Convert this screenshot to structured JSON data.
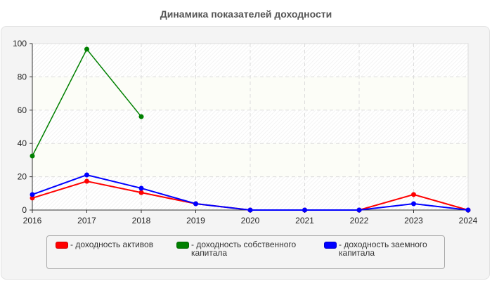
{
  "title": "Динамика показателей доходности",
  "colors": {
    "assets": "#ff0000",
    "equity": "#008000",
    "debt": "#0000ff",
    "panel_bg": "#f4f4f4",
    "grid": "#dddddd"
  },
  "legend": {
    "items": [
      {
        "label": "- доходность активов",
        "color": "#ff0000"
      },
      {
        "label": "- доходность собственного капитала",
        "color": "#008000"
      },
      {
        "label": "- доходность заемного капитала",
        "color": "#0000ff"
      }
    ]
  },
  "chart_data": {
    "type": "line",
    "title": "Динамика показателей доходности",
    "xlabel": "",
    "ylabel": "",
    "x": [
      "2016",
      "2017",
      "2018",
      "2019",
      "2020",
      "2021",
      "2022",
      "2023",
      "2024"
    ],
    "ylim": [
      0,
      100
    ],
    "yticks": [
      0,
      20,
      40,
      60,
      80,
      100
    ],
    "grid": true,
    "legend_position": "bottom",
    "series": [
      {
        "name": "доходность активов",
        "color": "#ff0000",
        "values": [
          7.2,
          17.3,
          10.5,
          3.8,
          0,
          0,
          0,
          9.3,
          0
        ]
      },
      {
        "name": "доходность собственного капитала",
        "color": "#008000",
        "values": [
          32.5,
          96.6,
          56.1,
          null,
          null,
          null,
          null,
          null,
          null
        ]
      },
      {
        "name": "доходность заемного капитала",
        "color": "#0000ff",
        "values": [
          9.3,
          21.1,
          13.1,
          3.8,
          0,
          0,
          0,
          3.8,
          0
        ]
      }
    ]
  }
}
